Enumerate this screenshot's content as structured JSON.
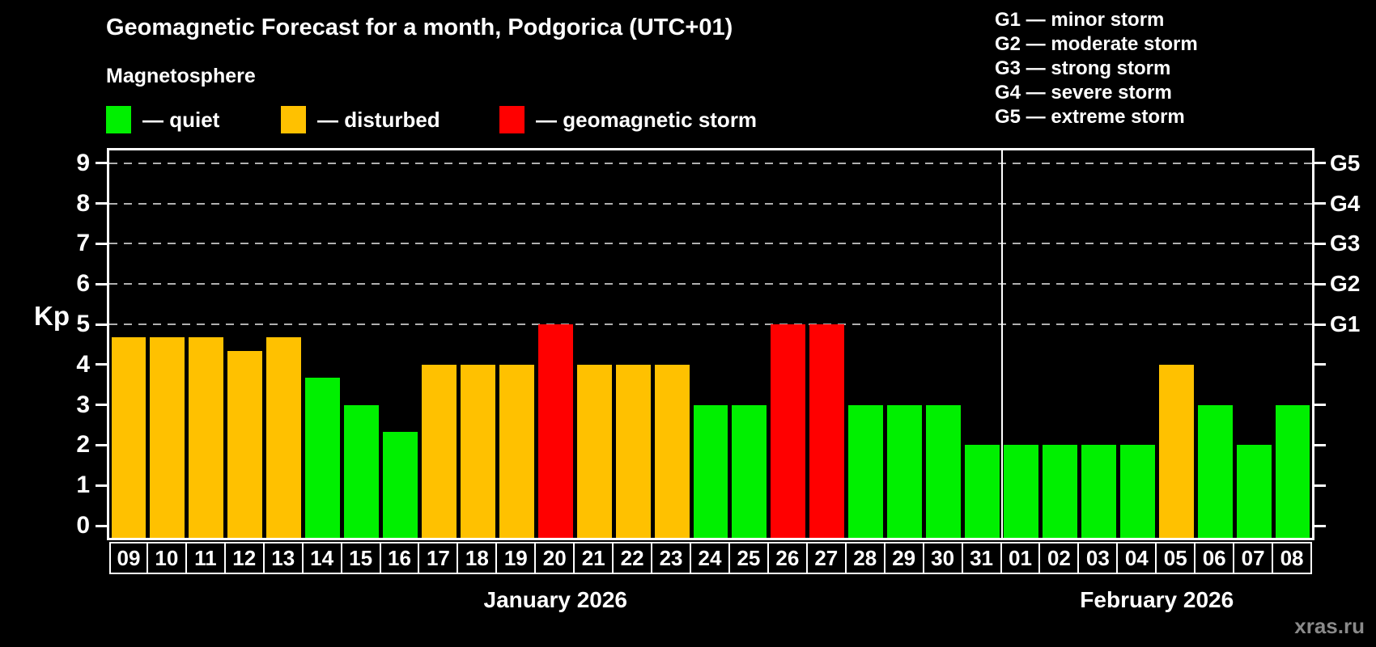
{
  "title": "Geomagnetic Forecast for a month, Podgorica (UTC+01)",
  "subtitle": "Magnetosphere",
  "legend": [
    {
      "key": "quiet",
      "label": "— quiet"
    },
    {
      "key": "disturbed",
      "label": "— disturbed"
    },
    {
      "key": "storm",
      "label": "— geomagnetic storm"
    }
  ],
  "status_colors": {
    "quiet": "#00f000",
    "disturbed": "#ffc100",
    "storm": "#ff0000"
  },
  "g_scale_legend": [
    "G1 — minor storm",
    "G2 — moderate storm",
    "G3 — strong storm",
    "G4 — severe storm",
    "G5 — extreme storm"
  ],
  "ylabel": "Kp",
  "watermark": "xras.ru",
  "chart_data": {
    "type": "bar",
    "title": "Geomagnetic Forecast for a month, Podgorica (UTC+01)",
    "subtitle": "Magnetosphere",
    "ylabel": "Kp",
    "ylim": [
      0,
      9
    ],
    "yticks": [
      0,
      1,
      2,
      3,
      4,
      5,
      6,
      7,
      8,
      9
    ],
    "gridlines_at_kp": [
      5,
      6,
      7,
      8,
      9
    ],
    "grid": "dashed-horizontal",
    "legend_position": "top",
    "right_axis": [
      {
        "label": "G1",
        "kp": 5
      },
      {
        "label": "G2",
        "kp": 6
      },
      {
        "label": "G3",
        "kp": 7
      },
      {
        "label": "G4",
        "kp": 8
      },
      {
        "label": "G5",
        "kp": 9
      }
    ],
    "months": [
      {
        "label": "January 2026",
        "days": 23
      },
      {
        "label": "February 2026",
        "days": 8
      }
    ],
    "categories": [
      "09",
      "10",
      "11",
      "12",
      "13",
      "14",
      "15",
      "16",
      "17",
      "18",
      "19",
      "20",
      "21",
      "22",
      "23",
      "24",
      "25",
      "26",
      "27",
      "28",
      "29",
      "30",
      "31",
      "01",
      "02",
      "03",
      "04",
      "05",
      "06",
      "07",
      "08"
    ],
    "values": [
      4.67,
      4.67,
      4.67,
      4.33,
      4.67,
      3.67,
      3,
      2.33,
      4,
      4,
      4,
      5,
      4,
      4,
      4,
      3,
      3,
      5,
      5,
      3,
      3,
      3,
      2,
      2,
      2,
      2,
      2,
      4,
      3,
      2,
      3
    ],
    "statuses": [
      "disturbed",
      "disturbed",
      "disturbed",
      "disturbed",
      "disturbed",
      "quiet",
      "quiet",
      "quiet",
      "disturbed",
      "disturbed",
      "disturbed",
      "storm",
      "disturbed",
      "disturbed",
      "disturbed",
      "quiet",
      "quiet",
      "storm",
      "storm",
      "quiet",
      "quiet",
      "quiet",
      "quiet",
      "quiet",
      "quiet",
      "quiet",
      "quiet",
      "disturbed",
      "quiet",
      "quiet",
      "quiet"
    ]
  }
}
